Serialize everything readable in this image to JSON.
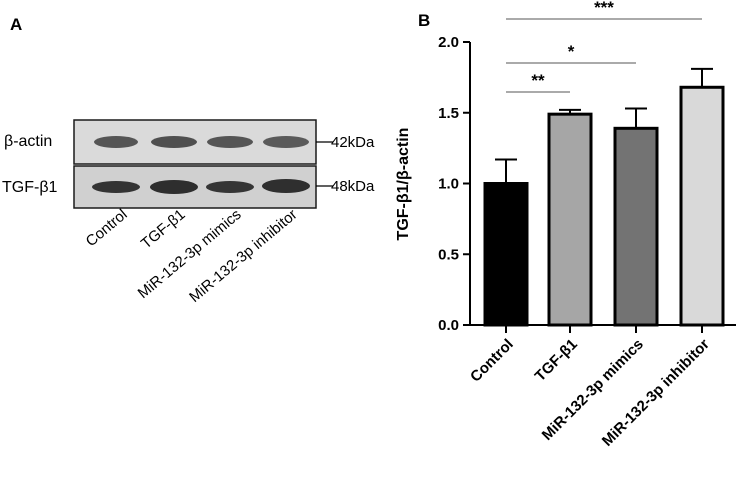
{
  "panel_a": {
    "label": "A",
    "blots": [
      {
        "name": "β-actin",
        "size": "42kDa"
      },
      {
        "name": "TGF-β1",
        "size": "48kDa"
      }
    ],
    "lanes": [
      "Control",
      "TGF-β1",
      "MiR-132-3p mimics",
      "MiR-132-3p inhibitor"
    ]
  },
  "chart_data": {
    "type": "bar",
    "panel_label": "B",
    "ylabel": "TGF-β1/β-actin",
    "xlabel": "",
    "ylim": [
      0,
      2.0
    ],
    "yticks": [
      "0.0",
      "0.5",
      "1.0",
      "1.5",
      "2.0"
    ],
    "ytick_values": [
      0,
      0.5,
      1.0,
      1.5,
      2.0
    ],
    "categories": [
      "Control",
      "TGF-β1",
      "MiR-132-3p mimics",
      "MiR-132-3p inhibitor"
    ],
    "values": [
      1.0,
      1.49,
      1.39,
      1.68
    ],
    "errors": [
      0.17,
      0.03,
      0.14,
      0.13
    ],
    "colors": [
      "#000000",
      "#a6a6a6",
      "#737373",
      "#d9d9d9"
    ],
    "significance": [
      {
        "from": 0,
        "to": 1,
        "label": "**"
      },
      {
        "from": 0,
        "to": 2,
        "label": "*"
      },
      {
        "from": 0,
        "to": 3,
        "label": "***"
      }
    ]
  }
}
